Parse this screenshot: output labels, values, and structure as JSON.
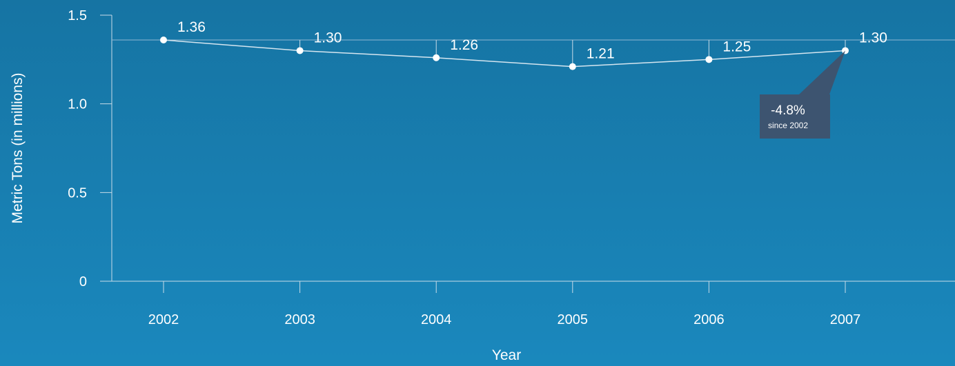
{
  "chart_data": {
    "type": "line",
    "xlabel": "Year",
    "ylabel": "Metric Tons (in millions)",
    "ylim": [
      0,
      1.5
    ],
    "y_ticks": [
      "0",
      "0.5",
      "1.0",
      "1.5"
    ],
    "y_tick_values": [
      0,
      0.5,
      1.0,
      1.5
    ],
    "categories": [
      "2002",
      "2003",
      "2004",
      "2005",
      "2006",
      "2007"
    ],
    "series": [
      {
        "values": [
          1.36,
          1.3,
          1.26,
          1.21,
          1.25,
          1.3
        ],
        "labels": [
          "1.36",
          "1.30",
          "1.26",
          "1.21",
          "1.25",
          "1.30"
        ]
      }
    ],
    "reference_line": 1.36,
    "annotation": {
      "value": "-4.8%",
      "text": "since 2002",
      "target_category": "2007"
    },
    "grid": false,
    "colors": {
      "line": "#d6e6f0",
      "callout": "#3d5470"
    }
  }
}
